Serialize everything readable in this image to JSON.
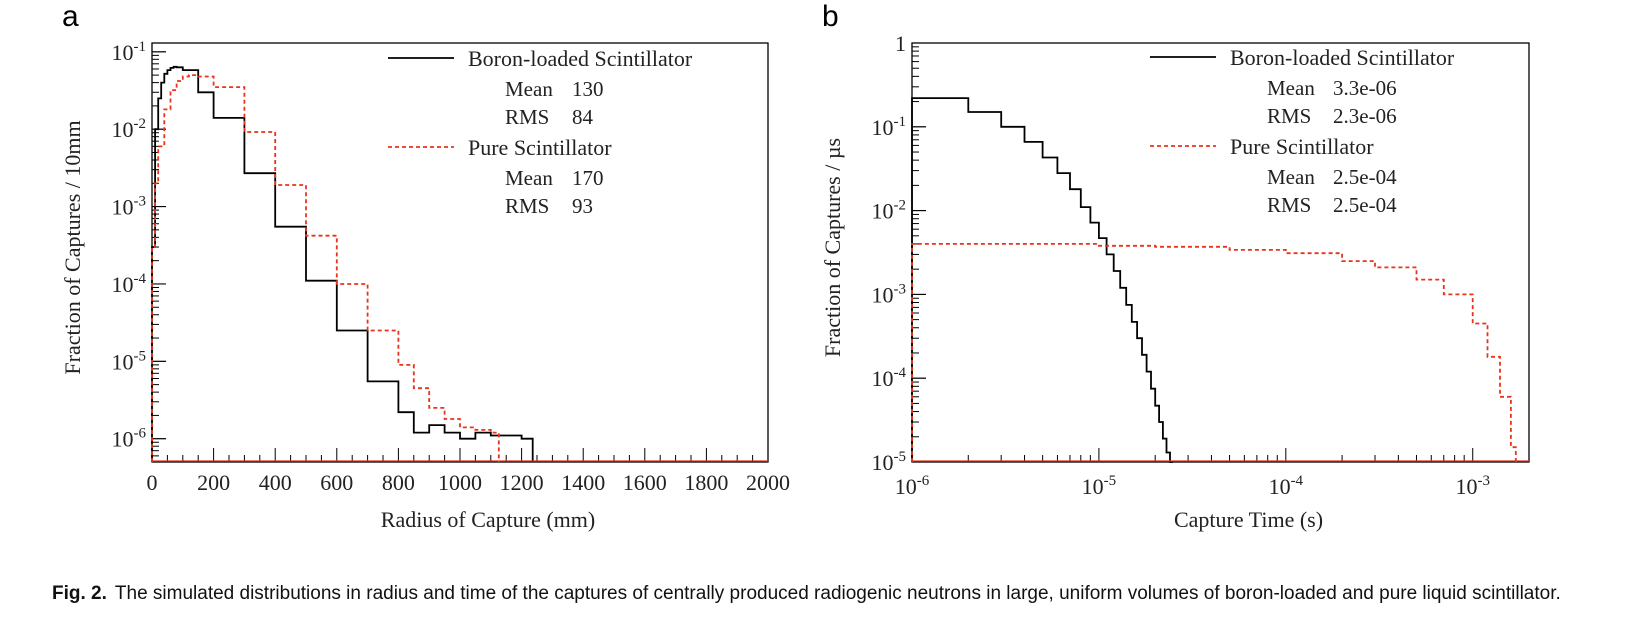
{
  "colors": {
    "boron": "#000000",
    "pure": "#e8341c",
    "frame": "#000000"
  },
  "chart_data": [
    {
      "panel": "a",
      "type": "line",
      "xlabel": "Radius of Capture (mm)",
      "ylabel": "Fraction of Captures / 10mm",
      "xlim": [
        0,
        2000
      ],
      "ylim": [
        5e-07,
        0.13
      ],
      "yscale": "log",
      "xticks": [
        0,
        200,
        400,
        600,
        800,
        1000,
        1200,
        1400,
        1600,
        1800,
        2000
      ],
      "yticks": [
        {
          "v": 1e-06,
          "m": "10",
          "e": "-6"
        },
        {
          "v": 1e-05,
          "m": "10",
          "e": "-5"
        },
        {
          "v": 0.0001,
          "m": "10",
          "e": "-4"
        },
        {
          "v": 0.001,
          "m": "10",
          "e": "-3"
        },
        {
          "v": 0.01,
          "m": "10",
          "e": "-2"
        },
        {
          "v": 0.1,
          "m": "10",
          "e": "-1"
        }
      ],
      "legend_position": "top-right",
      "series": [
        {
          "name": "Boron-loaded Scintillator",
          "style": "solid",
          "stats": [
            {
              "label": "Mean",
              "value": "130"
            },
            {
              "label": "RMS",
              "value": "84"
            }
          ],
          "x": [
            0,
            10,
            20,
            30,
            40,
            50,
            60,
            70,
            80,
            100,
            150,
            200,
            300,
            400,
            500,
            600,
            700,
            800,
            850,
            900,
            950,
            1000,
            1050,
            1100,
            1150,
            1200,
            1210
          ],
          "y": [
            0.0003,
            0.01,
            0.025,
            0.04,
            0.052,
            0.058,
            0.062,
            0.064,
            0.063,
            0.058,
            0.03,
            0.014,
            0.0027,
            0.00055,
            0.00011,
            2.5e-05,
            5.5e-06,
            2.2e-06,
            1.2e-06,
            1.5e-06,
            1.2e-06,
            1e-06,
            1.2e-06,
            1.1e-06,
            1.1e-06,
            1e-06,
            1e-06
          ]
        },
        {
          "name": "Pure Scintillator",
          "style": "dashed",
          "stats": [
            {
              "label": "Mean",
              "value": "170"
            },
            {
              "label": "RMS",
              "value": "93"
            }
          ],
          "x": [
            0,
            10,
            20,
            40,
            60,
            80,
            100,
            120,
            150,
            200,
            300,
            400,
            500,
            600,
            700,
            800,
            850,
            900,
            950,
            1000,
            1050,
            1100
          ],
          "y": [
            0.0003,
            0.002,
            0.006,
            0.018,
            0.032,
            0.042,
            0.048,
            0.05,
            0.048,
            0.035,
            0.0092,
            0.0019,
            0.00042,
            0.0001,
            2.5e-05,
            9e-06,
            4.5e-06,
            2.5e-06,
            1.8e-06,
            1.4e-06,
            1.3e-06,
            1.2e-06
          ]
        }
      ]
    },
    {
      "panel": "b",
      "type": "line",
      "xlabel": "Capture Time (s)",
      "ylabel": "Fraction of Captures / µs",
      "xscale": "log",
      "yscale": "log",
      "xlim": [
        1e-06,
        0.002
      ],
      "ylim": [
        1e-05,
        1
      ],
      "xticks": [
        {
          "v": 1e-06,
          "m": "10",
          "e": "-6"
        },
        {
          "v": 1e-05,
          "m": "10",
          "e": "-5"
        },
        {
          "v": 0.0001,
          "m": "10",
          "e": "-4"
        },
        {
          "v": 0.001,
          "m": "10",
          "e": "-3"
        }
      ],
      "yticks": [
        {
          "v": 1e-05,
          "m": "10",
          "e": "-5"
        },
        {
          "v": 0.0001,
          "m": "10",
          "e": "-4"
        },
        {
          "v": 0.001,
          "m": "10",
          "e": "-3"
        },
        {
          "v": 0.01,
          "m": "10",
          "e": "-2"
        },
        {
          "v": 0.1,
          "m": "10",
          "e": "-1"
        },
        {
          "v": 1,
          "m": "1",
          "e": ""
        }
      ],
      "legend_position": "top-right",
      "series": [
        {
          "name": "Boron-loaded Scintillator",
          "style": "solid",
          "stats": [
            {
              "label": "Mean",
              "value": "3.3e-06"
            },
            {
              "label": "RMS",
              "value": "2.3e-06"
            }
          ],
          "x": [
            1e-06,
            2e-06,
            3e-06,
            4e-06,
            5e-06,
            6e-06,
            7e-06,
            8e-06,
            9e-06,
            1e-05,
            1.1e-05,
            1.2e-05,
            1.3e-05,
            1.4e-05,
            1.5e-05,
            1.6e-05,
            1.7e-05,
            1.8e-05,
            1.9e-05,
            2e-05,
            2.1e-05,
            2.2e-05,
            2.3e-05,
            2.4e-05
          ],
          "y": [
            0.22,
            0.15,
            0.1,
            0.066,
            0.043,
            0.028,
            0.018,
            0.011,
            0.0072,
            0.0047,
            0.003,
            0.0019,
            0.0012,
            0.00075,
            0.00047,
            0.0003,
            0.00019,
            0.00012,
            7.5e-05,
            4.7e-05,
            3e-05,
            1.9e-05,
            1.3e-05,
            1e-05
          ]
        },
        {
          "name": "Pure Scintillator",
          "style": "dashed",
          "stats": [
            {
              "label": "Mean",
              "value": "2.5e-04"
            },
            {
              "label": "RMS",
              "value": "2.5e-04"
            }
          ],
          "x": [
            1e-06,
            5e-06,
            1e-05,
            2e-05,
            5e-05,
            0.0001,
            0.0002,
            0.0003,
            0.0005,
            0.0007,
            0.001,
            0.0012,
            0.0014,
            0.0016,
            0.0017
          ],
          "y": [
            0.004,
            0.004,
            0.0038,
            0.0037,
            0.0034,
            0.0031,
            0.0025,
            0.0021,
            0.0015,
            0.001,
            0.00045,
            0.00018,
            6e-05,
            1.5e-05,
            1e-05
          ]
        }
      ]
    }
  ],
  "panels": {
    "a": "a",
    "b": "b"
  },
  "caption": {
    "label": "Fig. 2.",
    "text": "The simulated distributions in radius and time of the captures of centrally produced radiogenic neutrons in large, uniform volumes of boron-loaded and pure liquid scintillator."
  }
}
